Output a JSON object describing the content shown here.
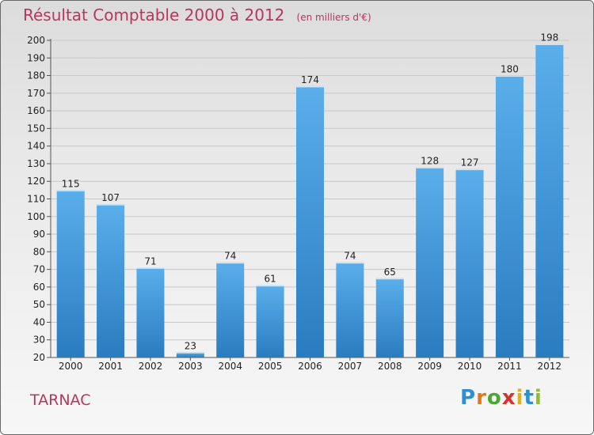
{
  "title": "Résultat Comptable 2000 à 2012",
  "subtitle": "(en milliers d'€)",
  "commune": "TARNAC",
  "logo": {
    "letters": [
      "P",
      "r",
      "o",
      "x",
      "i",
      "t",
      "i"
    ],
    "colors": [
      "#2d8fd4",
      "#e07b1a",
      "#4aa82e",
      "#d9322e",
      "#e0b21a",
      "#2d8fd4",
      "#8fbf2a"
    ]
  },
  "colors": {
    "bar_top": "#5aaeea",
    "bar_bottom": "#2a7cc0",
    "title": "#b8365e",
    "grid": "#c8c8c8",
    "axis_text": "#222222"
  },
  "chart_data": {
    "type": "bar",
    "title": "Résultat Comptable 2000 à 2012",
    "subtitle": "(en milliers d'€)",
    "xlabel": "",
    "ylabel": "",
    "categories": [
      "2000",
      "2001",
      "2002",
      "2003",
      "2004",
      "2005",
      "2006",
      "2007",
      "2008",
      "2009",
      "2010",
      "2011",
      "2012"
    ],
    "values": [
      115,
      107,
      71,
      23,
      74,
      61,
      174,
      74,
      65,
      128,
      127,
      180,
      198
    ],
    "ylim": [
      20,
      200
    ],
    "yticks": [
      20,
      30,
      40,
      50,
      60,
      70,
      80,
      90,
      100,
      110,
      120,
      130,
      140,
      150,
      160,
      170,
      180,
      190,
      200
    ],
    "grid": true,
    "data_labels": true
  }
}
